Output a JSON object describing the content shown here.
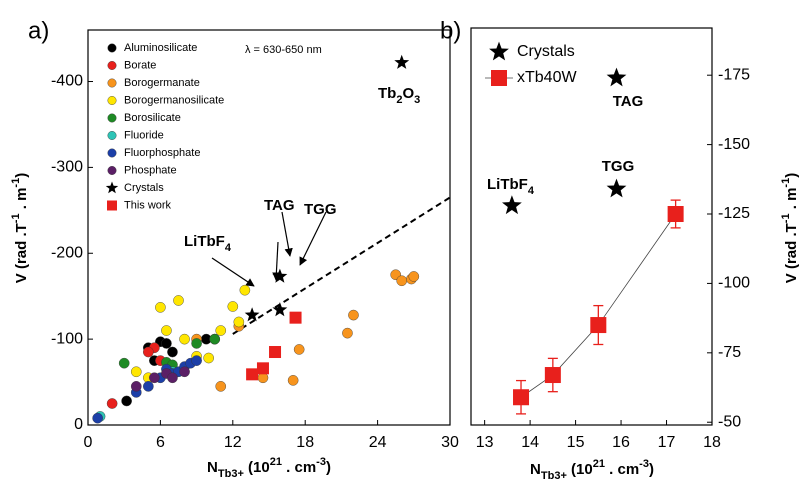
{
  "chart_data": [
    {
      "type": "scatter",
      "panel_label": "a)",
      "x_label": [
        "N",
        "Tb3+",
        " (10",
        "21",
        " . cm",
        "-3",
        ")"
      ],
      "y_label": [
        "V (rad .T",
        "-1",
        " . m",
        "-1",
        ")"
      ],
      "xlim": [
        0,
        30
      ],
      "xticks": [
        0,
        6,
        12,
        18,
        24,
        30
      ],
      "ylim": [
        0,
        -460
      ],
      "yticks": [
        0,
        -100,
        -200,
        -300,
        -400
      ],
      "legend": "upper left",
      "annotations": [
        "λ = 630-650 nm",
        [
          "LiTbF",
          "4"
        ],
        "TAG",
        "TGG",
        [
          "Tb",
          "2",
          "O",
          "3"
        ]
      ],
      "fit_line": {
        "x": [
          12,
          30
        ],
        "values": [
          -106,
          -265
        ],
        "color": "#000000"
      },
      "series": [
        {
          "name": "Aluminosilicate",
          "color": "#000000",
          "marker": "circle",
          "x": [
            3.2,
            5,
            5.5,
            6,
            6.5,
            7,
            9.8,
            10.5
          ],
          "values": [
            -28,
            -90,
            -75,
            -97,
            -95,
            -85,
            -100,
            -100
          ]
        },
        {
          "name": "Borate",
          "color": "#e8201c",
          "marker": "circle",
          "x": [
            2,
            5.5,
            6,
            5
          ],
          "values": [
            -25,
            -90,
            -75,
            -85
          ]
        },
        {
          "name": "Borogermanate",
          "color": "#f7941d",
          "marker": "circle",
          "x": [
            11,
            14.5,
            17,
            17.5,
            21.5,
            22,
            25.5,
            26,
            26.8,
            27,
            12.5,
            9
          ],
          "values": [
            -45,
            -55,
            -52,
            -88,
            -107,
            -128,
            -175,
            -168,
            -170,
            -173,
            -115,
            -100
          ]
        },
        {
          "name": "Borogermanosilicate",
          "color": "#ffe600",
          "marker": "circle",
          "x": [
            4,
            5,
            6,
            7.5,
            8,
            9,
            10,
            11,
            12,
            12.5,
            13,
            6.5
          ],
          "values": [
            -62,
            -55,
            -137,
            -145,
            -100,
            -80,
            -78,
            -110,
            -138,
            -120,
            -157,
            -110
          ]
        },
        {
          "name": "Borosilicate",
          "color": "#1e8a24",
          "marker": "circle",
          "x": [
            3,
            6.5,
            7,
            9,
            10.5
          ],
          "values": [
            -72,
            -73,
            -70,
            -95,
            -100
          ]
        },
        {
          "name": "Fluoride",
          "color": "#2ec4b6",
          "marker": "circle",
          "x": [
            1,
            7
          ],
          "values": [
            -10,
            -62
          ]
        },
        {
          "name": "Fluorphosphate",
          "color": "#1c3fa8",
          "marker": "circle",
          "x": [
            0.8,
            4,
            5,
            6,
            6.5,
            7,
            7.5,
            8,
            8.5,
            9
          ],
          "values": [
            -8,
            -38,
            -45,
            -55,
            -65,
            -60,
            -62,
            -68,
            -72,
            -75
          ]
        },
        {
          "name": "Phosphate",
          "color": "#5b1f66",
          "marker": "circle",
          "x": [
            4,
            5.5,
            6.5,
            7,
            8
          ],
          "values": [
            -45,
            -55,
            -60,
            -55,
            -62
          ]
        },
        {
          "name": "Crystals",
          "color": "#000000",
          "marker": "star",
          "x": [
            13.6,
            15.9,
            15.9,
            26
          ],
          "values": [
            -128,
            -173,
            -134,
            -422
          ]
        },
        {
          "name": "This work",
          "color": "#e8201c",
          "marker": "square",
          "x": [
            13.6,
            14.5,
            15.5,
            17.2
          ],
          "values": [
            -59,
            -66,
            -85,
            -125
          ]
        }
      ]
    },
    {
      "type": "scatter",
      "panel_label": "b)",
      "x_label": [
        "N",
        "Tb3+",
        " (10",
        "21",
        " . cm",
        "-3",
        ")"
      ],
      "y_label": [
        "V (rad .T",
        "-1",
        " . m",
        "-1",
        ")"
      ],
      "xlim": [
        12.7,
        18
      ],
      "xticks": [
        13,
        14,
        15,
        16,
        17,
        18
      ],
      "ylim": [
        -49,
        -192
      ],
      "yticks": [
        -50,
        -75,
        -100,
        -125,
        -150,
        -175
      ],
      "y_axis_side": "right",
      "legend": "upper left",
      "annotations": [
        [
          "LiTbF",
          "4"
        ],
        "TAG",
        "TGG"
      ],
      "series": [
        {
          "name": "Crystals",
          "color": "#000000",
          "marker": "star",
          "x": [
            13.6,
            15.9,
            15.9
          ],
          "values": [
            -128,
            -174,
            -134
          ]
        },
        {
          "name": "xTb40W",
          "color": "#e8201c",
          "marker": "square",
          "line": true,
          "x": [
            13.8,
            14.5,
            15.5,
            17.2
          ],
          "values": [
            -59,
            -67,
            -85,
            -125
          ],
          "errors": [
            6,
            6,
            7,
            5
          ]
        }
      ]
    }
  ]
}
